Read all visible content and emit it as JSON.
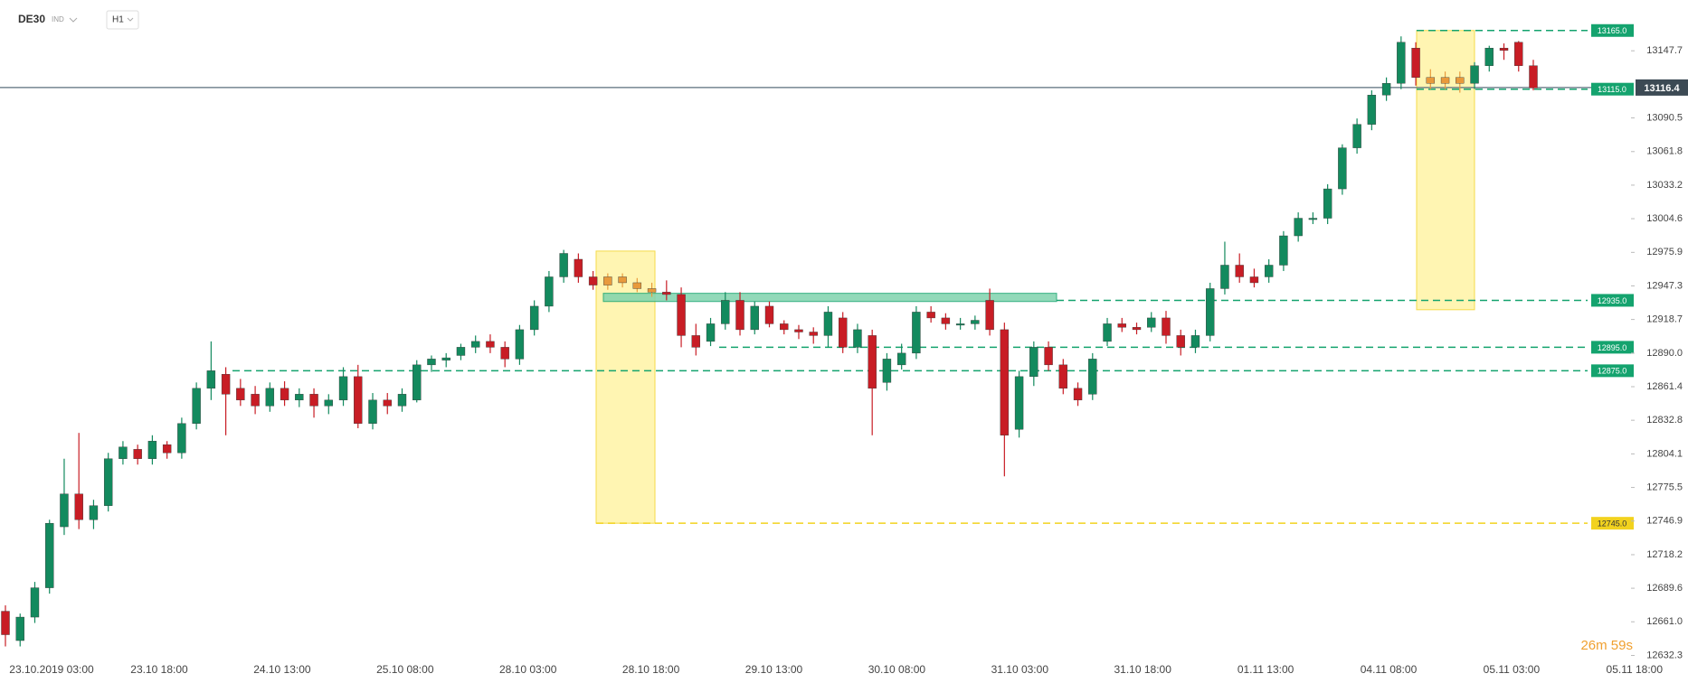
{
  "header": {
    "symbol": "DE30",
    "class": "IND",
    "timeframe": "H1"
  },
  "chart_data": {
    "type": "candlestick",
    "colors": {
      "up": "#138a5e",
      "down": "#c81d25",
      "highlight": "#e89a3c"
    },
    "ylim": [
      12625,
      13191
    ],
    "yticks": [
      13147.7,
      13090.5,
      13061.8,
      13033.2,
      13004.6,
      12975.9,
      12947.3,
      12918.7,
      {
        "value": 12890,
        "label": "12890.0"
      },
      12861.4,
      12832.8,
      12804.1,
      12775.5,
      12746.9,
      12718.2,
      12689.6,
      {
        "value": 12661,
        "label": "12661.0"
      },
      12632.3
    ],
    "time_labels": [
      "23.10.2019 03:00",
      "23.10 18:00",
      "24.10 13:00",
      "25.10 08:00",
      "28.10 03:00",
      "28.10 18:00",
      "29.10 13:00",
      "30.10 08:00",
      "31.10 03:00",
      "31.10 18:00",
      "01.11 13:00",
      "04.11 08:00",
      "05.11 03:00",
      "05.11 18:00"
    ],
    "current_price": 13116.4,
    "countdown": "26m 59s",
    "levels": [
      {
        "value": 13165,
        "label": "13165.0",
        "color": "#14a36e"
      },
      {
        "value": 13115,
        "label": "13115.0",
        "color": "#14a36e"
      },
      {
        "value": 12935,
        "label": "12935.0",
        "color": "#14a36e"
      },
      {
        "value": 12895,
        "label": "12895.0",
        "color": "#14a36e"
      },
      {
        "value": 12875,
        "label": "12875.0",
        "color": "#14a36e"
      },
      {
        "value": 12745,
        "label": "12745.0",
        "color": "#f2d21e"
      }
    ],
    "zones": [
      {
        "range": [
          12745,
          12977
        ],
        "color": "#fff3a0",
        "stroke": "#f2d21e"
      },
      {
        "range": [
          12927,
          13165
        ],
        "color": "#fff3a0",
        "stroke": "#f2d21e"
      },
      {
        "range": [
          12934,
          12941
        ],
        "color": "#7fd3ad",
        "stroke": "#14a36e"
      }
    ],
    "candles": [
      [
        12670,
        12675,
        12640,
        12650
      ],
      [
        12645,
        12668,
        12640,
        12665
      ],
      [
        12665,
        12695,
        12660,
        12690
      ],
      [
        12690,
        12748,
        12685,
        12745
      ],
      [
        12742,
        12800,
        12735,
        12770
      ],
      [
        12770,
        12822,
        12740,
        12748
      ],
      [
        12748,
        12765,
        12740,
        12760
      ],
      [
        12760,
        12805,
        12755,
        12800
      ],
      [
        12800,
        12815,
        12795,
        12810
      ],
      [
        12808,
        12812,
        12795,
        12800
      ],
      [
        12800,
        12820,
        12795,
        12815
      ],
      [
        12812,
        12815,
        12800,
        12805
      ],
      [
        12805,
        12835,
        12800,
        12830
      ],
      [
        12830,
        12865,
        12825,
        12860
      ],
      [
        12860,
        12900,
        12850,
        12875
      ],
      [
        12872,
        12878,
        12820,
        12855
      ],
      [
        12860,
        12868,
        12845,
        12850
      ],
      [
        12855,
        12862,
        12838,
        12845
      ],
      [
        12845,
        12865,
        12840,
        12860
      ],
      [
        12860,
        12866,
        12845,
        12850
      ],
      [
        12850,
        12860,
        12844,
        12855
      ],
      [
        12855,
        12860,
        12835,
        12845
      ],
      [
        12845,
        12855,
        12838,
        12850
      ],
      [
        12850,
        12878,
        12845,
        12870
      ],
      [
        12870,
        12880,
        12826,
        12830
      ],
      [
        12830,
        12856,
        12825,
        12850
      ],
      [
        12850,
        12856,
        12838,
        12845
      ],
      [
        12845,
        12860,
        12840,
        12855
      ],
      [
        12850,
        12884,
        12848,
        12880
      ],
      [
        12880,
        12888,
        12874,
        12885
      ],
      [
        12884,
        12890,
        12878,
        12886
      ],
      [
        12888,
        12898,
        12884,
        12895
      ],
      [
        12895,
        12905,
        12890,
        12900
      ],
      [
        12900,
        12906,
        12890,
        12895
      ],
      [
        12895,
        12900,
        12878,
        12885
      ],
      [
        12885,
        12914,
        12880,
        12910
      ],
      [
        12910,
        12935,
        12905,
        12930
      ],
      [
        12930,
        12960,
        12925,
        12955
      ],
      [
        12955,
        12978,
        12950,
        12975
      ],
      [
        12970,
        12975,
        12950,
        12955
      ],
      [
        12955,
        12960,
        12944,
        12948
      ],
      [
        12948,
        12958,
        12944,
        12955
      ],
      [
        12955,
        12958,
        12946,
        12950
      ],
      [
        12950,
        12954,
        12942,
        12945
      ],
      [
        12945,
        12950,
        12938,
        12942
      ],
      [
        12942,
        12952,
        12935,
        12940
      ],
      [
        12940,
        12946,
        12895,
        12905
      ],
      [
        12905,
        12915,
        12888,
        12895
      ],
      [
        12900,
        12920,
        12896,
        12915
      ],
      [
        12915,
        12942,
        12910,
        12935
      ],
      [
        12935,
        12942,
        12905,
        12910
      ],
      [
        12910,
        12934,
        12906,
        12930
      ],
      [
        12930,
        12934,
        12912,
        12915
      ],
      [
        12915,
        12918,
        12906,
        12910
      ],
      [
        12910,
        12914,
        12902,
        12908
      ],
      [
        12908,
        12912,
        12898,
        12905
      ],
      [
        12905,
        12930,
        12895,
        12925
      ],
      [
        12920,
        12925,
        12890,
        12895
      ],
      [
        12895,
        12915,
        12890,
        12910
      ],
      [
        12905,
        12910,
        12820,
        12860
      ],
      [
        12865,
        12890,
        12858,
        12885
      ],
      [
        12880,
        12898,
        12876,
        12890
      ],
      [
        12890,
        12930,
        12885,
        12925
      ],
      [
        12925,
        12930,
        12916,
        12920
      ],
      [
        12920,
        12924,
        12910,
        12915
      ],
      [
        12915,
        12920,
        12910,
        12915
      ],
      [
        12915,
        12922,
        12910,
        12918
      ],
      [
        12935,
        12945,
        12905,
        12910
      ],
      [
        12910,
        12916,
        12785,
        12820
      ],
      [
        12825,
        12875,
        12818,
        12870
      ],
      [
        12870,
        12900,
        12862,
        12895
      ],
      [
        12895,
        12900,
        12875,
        12880
      ],
      [
        12880,
        12885,
        12855,
        12860
      ],
      [
        12860,
        12865,
        12845,
        12850
      ],
      [
        12855,
        12890,
        12850,
        12885
      ],
      [
        12900,
        12920,
        12896,
        12915
      ],
      [
        12915,
        12920,
        12908,
        12912
      ],
      [
        12912,
        12916,
        12906,
        12910
      ],
      [
        12912,
        12925,
        12908,
        12920
      ],
      [
        12920,
        12926,
        12898,
        12905
      ],
      [
        12905,
        12910,
        12888,
        12895
      ],
      [
        12895,
        12910,
        12890,
        12905
      ],
      [
        12905,
        12950,
        12900,
        12945
      ],
      [
        12945,
        12985,
        12940,
        12965
      ],
      [
        12965,
        12975,
        12950,
        12955
      ],
      [
        12955,
        12962,
        12946,
        12950
      ],
      [
        12955,
        12970,
        12950,
        12965
      ],
      [
        12965,
        12994,
        12960,
        12990
      ],
      [
        12990,
        13010,
        12985,
        13005
      ],
      [
        13005,
        13010,
        13000,
        13005
      ],
      [
        13005,
        13034,
        13000,
        13030
      ],
      [
        13030,
        13068,
        13025,
        13065
      ],
      [
        13065,
        13090,
        13060,
        13085
      ],
      [
        13085,
        13114,
        13080,
        13110
      ],
      [
        13110,
        13125,
        13105,
        13120
      ],
      [
        13120,
        13160,
        13115,
        13155
      ],
      [
        13150,
        13155,
        13118,
        13125
      ],
      [
        13125,
        13132,
        13115,
        13120
      ],
      [
        13120,
        13130,
        13115,
        13125
      ],
      [
        13125,
        13130,
        13112,
        13120
      ],
      [
        13120,
        13138,
        13115,
        13135
      ],
      [
        13135,
        13152,
        13130,
        13150
      ],
      [
        13150,
        13154,
        13140,
        13148
      ],
      [
        13155,
        13156,
        13130,
        13135
      ],
      [
        13135,
        13140,
        13114,
        13116
      ]
    ]
  }
}
